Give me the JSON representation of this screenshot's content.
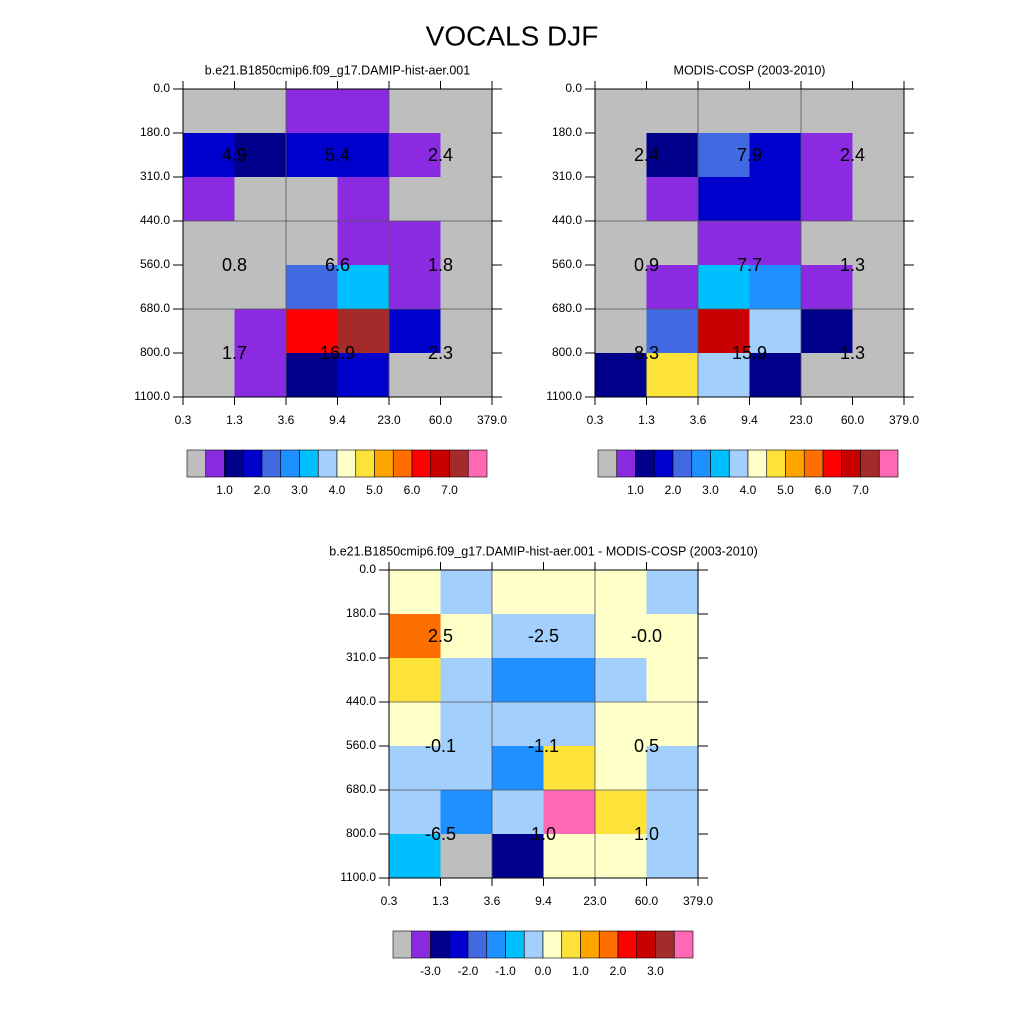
{
  "title": "VOCALS DJF",
  "chart_data": [
    {
      "type": "heatmap",
      "title": "b.e21.B1850cmip6.f09_g17.DAMIP-hist-aer.001",
      "x_edges": [
        "0.3",
        "1.3",
        "3.6",
        "9.4",
        "23.0",
        "60.0",
        "379.0"
      ],
      "y_edges": [
        "0.0",
        "180.0",
        "310.0",
        "440.0",
        "560.0",
        "680.0",
        "800.0",
        "1100.0"
      ],
      "values": [
        [
          0.3,
          0.3,
          0.8,
          0.8,
          0.3,
          0.3
        ],
        [
          1.8,
          1.3,
          1.8,
          1.8,
          0.8,
          0.3
        ],
        [
          0.8,
          0.3,
          0.3,
          0.8,
          0.3,
          0.3
        ],
        [
          0.3,
          0.3,
          0.3,
          0.8,
          0.8,
          0.3
        ],
        [
          0.3,
          0.3,
          2.3,
          3.3,
          0.8,
          0.3
        ],
        [
          0.3,
          0.8,
          6.3,
          7.3,
          1.8,
          0.3
        ],
        [
          0.3,
          0.8,
          1.3,
          1.8,
          0.3,
          0.3
        ]
      ],
      "block_values": [
        [
          4.9,
          5.4,
          2.4
        ],
        [
          0.8,
          6.6,
          1.8
        ],
        [
          1.7,
          16.9,
          2.3
        ]
      ],
      "levels": [
        0.5,
        1,
        1.5,
        2,
        2.5,
        3,
        3.5,
        4,
        4.5,
        5,
        5.5,
        6,
        6.5,
        7,
        7.5
      ],
      "colors": [
        "#bebebe",
        "#8a2be2",
        "#00008b",
        "#0000cd",
        "#4169e1",
        "#1e90ff",
        "#00bfff",
        "#a2cffc",
        "#ffffc8",
        "#fde23a",
        "#ffa500",
        "#ff6e00",
        "#ff0000",
        "#c80000",
        "#a52a2a",
        "#ff69b4"
      ],
      "colorbar_ticks": [
        {
          "value": 1,
          "label": "1.0"
        },
        {
          "value": 2,
          "label": "2.0"
        },
        {
          "value": 3,
          "label": "3.0"
        },
        {
          "value": 4,
          "label": "4.0"
        },
        {
          "value": 5,
          "label": "5.0"
        },
        {
          "value": 6,
          "label": "6.0"
        },
        {
          "value": 7,
          "label": "7.0"
        }
      ]
    },
    {
      "type": "heatmap",
      "title": "MODIS-COSP (2003-2010)",
      "x_edges": [
        "0.3",
        "1.3",
        "3.6",
        "9.4",
        "23.0",
        "60.0",
        "379.0"
      ],
      "y_edges": [
        "0.0",
        "180.0",
        "310.0",
        "440.0",
        "560.0",
        "680.0",
        "800.0",
        "1100.0"
      ],
      "values": [
        [
          0.3,
          0.3,
          0.3,
          0.3,
          0.3,
          0.3
        ],
        [
          0.3,
          1.3,
          2.3,
          1.8,
          0.8,
          0.3
        ],
        [
          0.3,
          0.8,
          1.8,
          1.8,
          0.8,
          0.3
        ],
        [
          0.3,
          0.3,
          0.8,
          0.8,
          0.3,
          0.3
        ],
        [
          0.3,
          0.8,
          3.3,
          2.8,
          0.8,
          0.3
        ],
        [
          0.3,
          2.3,
          6.8,
          3.8,
          1.3,
          0.3
        ],
        [
          1.3,
          4.8,
          3.8,
          1.3,
          0.3,
          0.3
        ]
      ],
      "block_values": [
        [
          2.4,
          7.9,
          2.4
        ],
        [
          0.9,
          7.7,
          1.3
        ],
        [
          8.3,
          15.9,
          1.3
        ]
      ],
      "levels": [
        0.5,
        1,
        1.5,
        2,
        2.5,
        3,
        3.5,
        4,
        4.5,
        5,
        5.5,
        6,
        6.5,
        7,
        7.5
      ],
      "colors": [
        "#bebebe",
        "#8a2be2",
        "#00008b",
        "#0000cd",
        "#4169e1",
        "#1e90ff",
        "#00bfff",
        "#a2cffc",
        "#ffffc8",
        "#fde23a",
        "#ffa500",
        "#ff6e00",
        "#ff0000",
        "#c80000",
        "#a52a2a",
        "#ff69b4"
      ],
      "colorbar_ticks": [
        {
          "value": 1,
          "label": "1.0"
        },
        {
          "value": 2,
          "label": "2.0"
        },
        {
          "value": 3,
          "label": "3.0"
        },
        {
          "value": 4,
          "label": "4.0"
        },
        {
          "value": 5,
          "label": "5.0"
        },
        {
          "value": 6,
          "label": "6.0"
        },
        {
          "value": 7,
          "label": "7.0"
        }
      ]
    },
    {
      "type": "heatmap",
      "title": "b.e21.B1850cmip6.f09_g17.DAMIP-hist-aer.001 - MODIS-COSP (2003-2010)",
      "x_edges": [
        "0.3",
        "1.3",
        "3.6",
        "9.4",
        "23.0",
        "60.0",
        "379.0"
      ],
      "y_edges": [
        "0.0",
        "180.0",
        "310.0",
        "440.0",
        "560.0",
        "680.0",
        "800.0",
        "1100.0"
      ],
      "values": [
        [
          0.2,
          -0.3,
          0.2,
          0.2,
          0.2,
          -0.3
        ],
        [
          1.8,
          0.2,
          -0.3,
          -0.3,
          0.2,
          0.2
        ],
        [
          0.8,
          -0.3,
          -1.3,
          -1.3,
          -0.3,
          0.2
        ],
        [
          0.2,
          -0.3,
          -0.3,
          -0.3,
          0.2,
          0.2
        ],
        [
          -0.3,
          -0.3,
          -1.3,
          0.8,
          0.2,
          -0.3
        ],
        [
          -0.3,
          -1.3,
          -0.3,
          3.8,
          0.8,
          -0.3
        ],
        [
          -0.8,
          -3.8,
          -2.8,
          0.2,
          0.2,
          -0.3
        ]
      ],
      "block_values": [
        [
          2.5,
          -2.5,
          -0.0
        ],
        [
          -0.1,
          -1.1,
          0.5
        ],
        [
          -6.5,
          1.0,
          1.0
        ]
      ],
      "block_value_labels": [
        [
          "2.5",
          "-2.5",
          "-0.0"
        ],
        [
          "-0.1",
          "-1.1",
          "0.5"
        ],
        [
          "-6.5",
          "1.0",
          "1.0"
        ]
      ],
      "levels": [
        -3.5,
        -3,
        -2.5,
        -2,
        -1.5,
        -1,
        -0.5,
        0,
        0.5,
        1,
        1.5,
        2,
        2.5,
        3,
        3.5
      ],
      "colors": [
        "#bebebe",
        "#8a2be2",
        "#00008b",
        "#0000cd",
        "#4169e1",
        "#1e90ff",
        "#00bfff",
        "#a2cffc",
        "#ffffc8",
        "#fde23a",
        "#ffa500",
        "#ff6e00",
        "#ff0000",
        "#c80000",
        "#a52a2a",
        "#ff69b4"
      ],
      "colorbar_ticks": [
        {
          "value": -3,
          "label": "-3.0"
        },
        {
          "value": -2,
          "label": "-2.0"
        },
        {
          "value": -1,
          "label": "-1.0"
        },
        {
          "value": 0,
          "label": "0.0"
        },
        {
          "value": 1,
          "label": "1.0"
        },
        {
          "value": 2,
          "label": "2.0"
        },
        {
          "value": 3,
          "label": "3.0"
        }
      ]
    }
  ]
}
